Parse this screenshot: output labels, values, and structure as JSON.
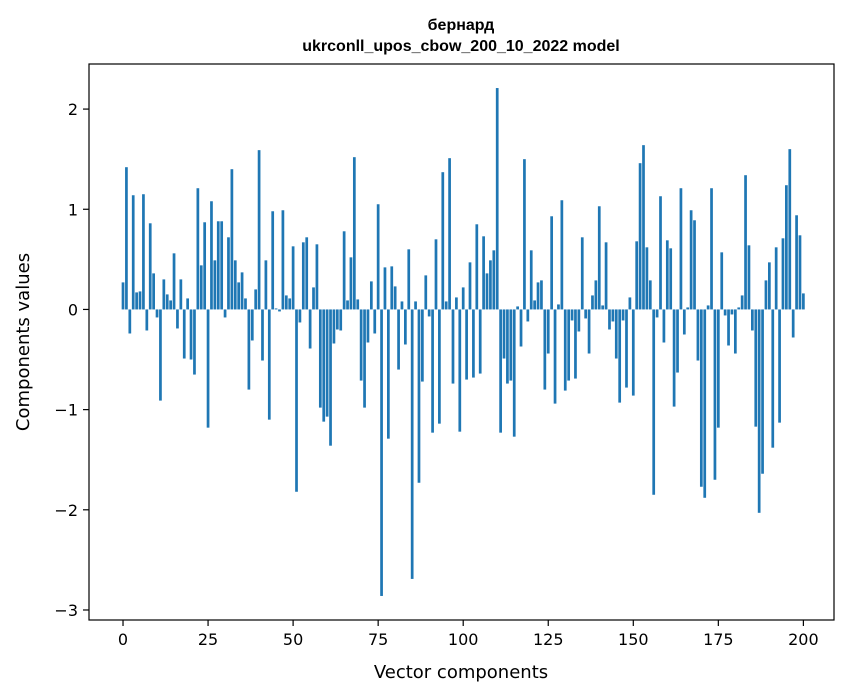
{
  "chart_data": {
    "type": "bar",
    "title_line1": "бернард",
    "title_line2": "ukrconll_upos_cbow_200_10_2022 model",
    "xlabel": "Vector components",
    "ylabel": "Components values",
    "xlim": [
      -10,
      209
    ],
    "ylim": [
      -3.1,
      2.45
    ],
    "xticks": [
      0,
      25,
      50,
      75,
      100,
      125,
      150,
      175,
      200
    ],
    "xtick_labels": [
      "0",
      "25",
      "50",
      "75",
      "100",
      "125",
      "150",
      "175",
      "200"
    ],
    "yticks": [
      -3,
      -2,
      -1,
      0,
      1,
      2
    ],
    "ytick_labels": [
      "−3",
      "−2",
      "−1",
      "0",
      "1",
      "2"
    ],
    "bar_color": "#1f77b4",
    "values": [
      0.27,
      1.42,
      -0.24,
      1.14,
      0.17,
      0.18,
      1.15,
      -0.21,
      0.86,
      0.36,
      -0.08,
      -0.91,
      0.3,
      0.15,
      0.09,
      0.56,
      -0.19,
      0.3,
      -0.49,
      0.11,
      -0.5,
      -0.65,
      1.21,
      0.44,
      0.87,
      -1.18,
      1.08,
      0.49,
      0.88,
      0.88,
      -0.08,
      0.72,
      1.4,
      0.49,
      0.27,
      0.37,
      0.11,
      -0.8,
      -0.31,
      0.2,
      1.59,
      -0.51,
      0.49,
      -1.1,
      0.98,
      0.01,
      -0.02,
      0.99,
      0.14,
      0.11,
      0.63,
      -1.82,
      -0.13,
      0.67,
      0.72,
      -0.39,
      0.22,
      0.65,
      -0.98,
      -1.12,
      -1.07,
      -1.36,
      -0.34,
      -0.2,
      -0.21,
      0.78,
      0.09,
      0.52,
      1.52,
      0.1,
      -0.71,
      -0.98,
      -0.33,
      0.28,
      -0.24,
      1.05,
      -2.86,
      0.42,
      -1.29,
      0.43,
      0.23,
      -0.6,
      0.08,
      -0.35,
      0.6,
      -2.69,
      0.08,
      -1.73,
      -0.72,
      0.34,
      -0.07,
      -1.23,
      0.7,
      -1.14,
      1.37,
      0.08,
      1.51,
      -0.74,
      0.12,
      -1.22,
      0.22,
      -0.7,
      0.47,
      -0.68,
      0.85,
      -0.64,
      0.73,
      0.36,
      0.49,
      0.59,
      2.21,
      -1.23,
      -0.49,
      -0.74,
      -0.71,
      -1.27,
      0.03,
      -0.37,
      1.5,
      -0.12,
      0.59,
      0.09,
      0.27,
      0.29,
      -0.8,
      -0.44,
      0.93,
      -0.94,
      0.05,
      1.09,
      -0.81,
      -0.71,
      -0.11,
      -0.69,
      -0.22,
      0.72,
      -0.09,
      -0.44,
      0.14,
      0.29,
      1.03,
      0.04,
      0.67,
      -0.2,
      -0.12,
      -0.49,
      -0.93,
      -0.11,
      -0.78,
      0.12,
      -0.86,
      0.68,
      1.46,
      1.64,
      0.62,
      0.29,
      -1.85,
      -0.08,
      1.13,
      -0.33,
      0.69,
      0.61,
      -0.97,
      -0.63,
      1.21,
      -0.25,
      0.02,
      0.99,
      0.89,
      -0.51,
      -1.77,
      -1.88,
      0.04,
      1.21,
      -1.7,
      -1.18,
      0.57,
      -0.06,
      -0.36,
      -0.05,
      -0.44,
      0.02,
      0.14,
      1.34,
      0.64,
      -0.21,
      -1.17,
      -2.03,
      -1.64,
      0.29,
      0.47,
      -1.38,
      0.62,
      -1.13,
      0.71,
      1.24,
      1.6,
      -0.28,
      0.94,
      0.74,
      0.16
    ]
  }
}
